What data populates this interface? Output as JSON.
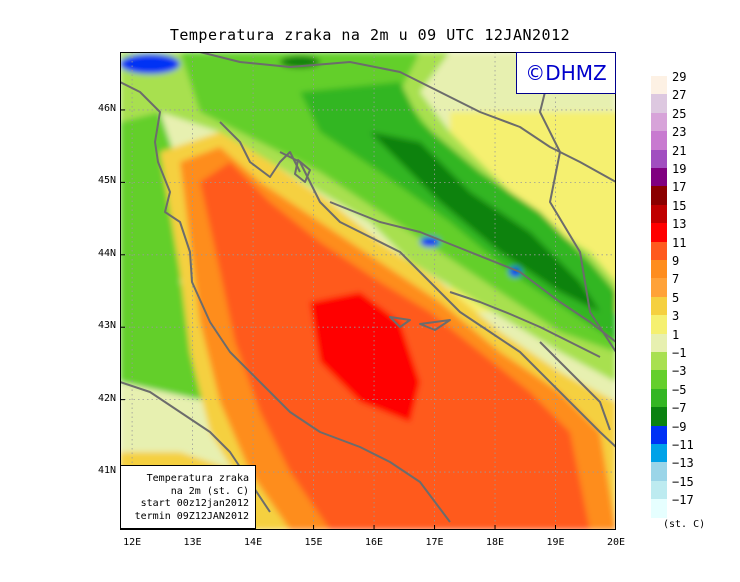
{
  "title": "Temperatura zraka na 2m u 09 UTC 12JAN2012",
  "logo_text": "©DHMZ",
  "info_box": [
    "Temperatura zraka",
    "na 2m (st. C)",
    "start 00z12jan2012",
    "termin 09Z12JAN2012"
  ],
  "lat_labels": [
    "46N",
    "45N",
    "44N",
    "43N",
    "42N",
    "41N"
  ],
  "lat_values": [
    46,
    45,
    44,
    43,
    42,
    41
  ],
  "lon_labels": [
    "12E",
    "13E",
    "14E",
    "15E",
    "16E",
    "17E",
    "18E",
    "19E",
    "20E"
  ],
  "lon_values": [
    12,
    13,
    14,
    15,
    16,
    17,
    18,
    19,
    20
  ],
  "lat_range": [
    40.2,
    46.8
  ],
  "lon_range": [
    11.8,
    20.0
  ],
  "legend": {
    "unit": "(st. C)",
    "levels": [
      "29",
      "27",
      "25",
      "23",
      "21",
      "19",
      "17",
      "15",
      "13",
      "11",
      "9",
      "7",
      "5",
      "3",
      "1",
      "−1",
      "−3",
      "−5",
      "−7",
      "−9",
      "−11",
      "−13",
      "−15",
      "−17"
    ],
    "colors": [
      "#fdf1e4",
      "#ddc8e0",
      "#d7a3d9",
      "#c87ad0",
      "#a14ec0",
      "#800080",
      "#8b0000",
      "#c00000",
      "#ff0000",
      "#ff5a1e",
      "#fe8d1e",
      "#ffa238",
      "#f5d040",
      "#f5f070",
      "#e7f0b0",
      "#a8e050",
      "#64cf2c",
      "#33b623",
      "#0a8210",
      "#0031f5",
      "#00a2e8",
      "#9bd5e8",
      "#bdebf0",
      "#e6ffff"
    ]
  }
}
